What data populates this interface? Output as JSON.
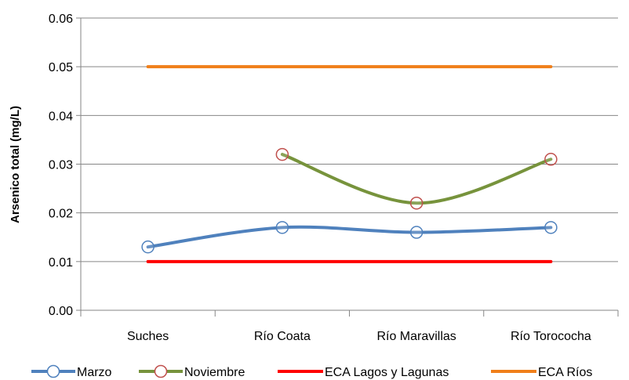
{
  "chart_data": {
    "type": "line",
    "title": "",
    "xlabel": "",
    "ylabel": "Arsenico total (mg/L)",
    "categories": [
      "Suches",
      "Río Coata",
      "Río Maravillas",
      "Río Torococha"
    ],
    "ylim": [
      0,
      0.06
    ],
    "yticks": [
      "0.00",
      "0.01",
      "0.02",
      "0.03",
      "0.04",
      "0.05",
      "0.06"
    ],
    "grid": true,
    "smooth": true,
    "legend_position": "bottom",
    "series": [
      {
        "name": "Marzo",
        "values": [
          0.013,
          0.017,
          0.016,
          0.017
        ],
        "color": "#4f81bd",
        "marker": "circle"
      },
      {
        "name": "Noviembre",
        "values": [
          null,
          0.032,
          0.022,
          0.031
        ],
        "color": "#77933c",
        "marker": "circle",
        "marker_color": "#c0504d"
      },
      {
        "name": "ECA Lagos y Lagunas",
        "values": [
          0.01,
          0.01,
          0.01,
          0.01
        ],
        "color": "#ff0000",
        "marker": "none"
      },
      {
        "name": "ECA Ríos",
        "values": [
          0.05,
          0.05,
          0.05,
          0.05
        ],
        "color": "#f07f1a",
        "marker": "none"
      }
    ]
  }
}
